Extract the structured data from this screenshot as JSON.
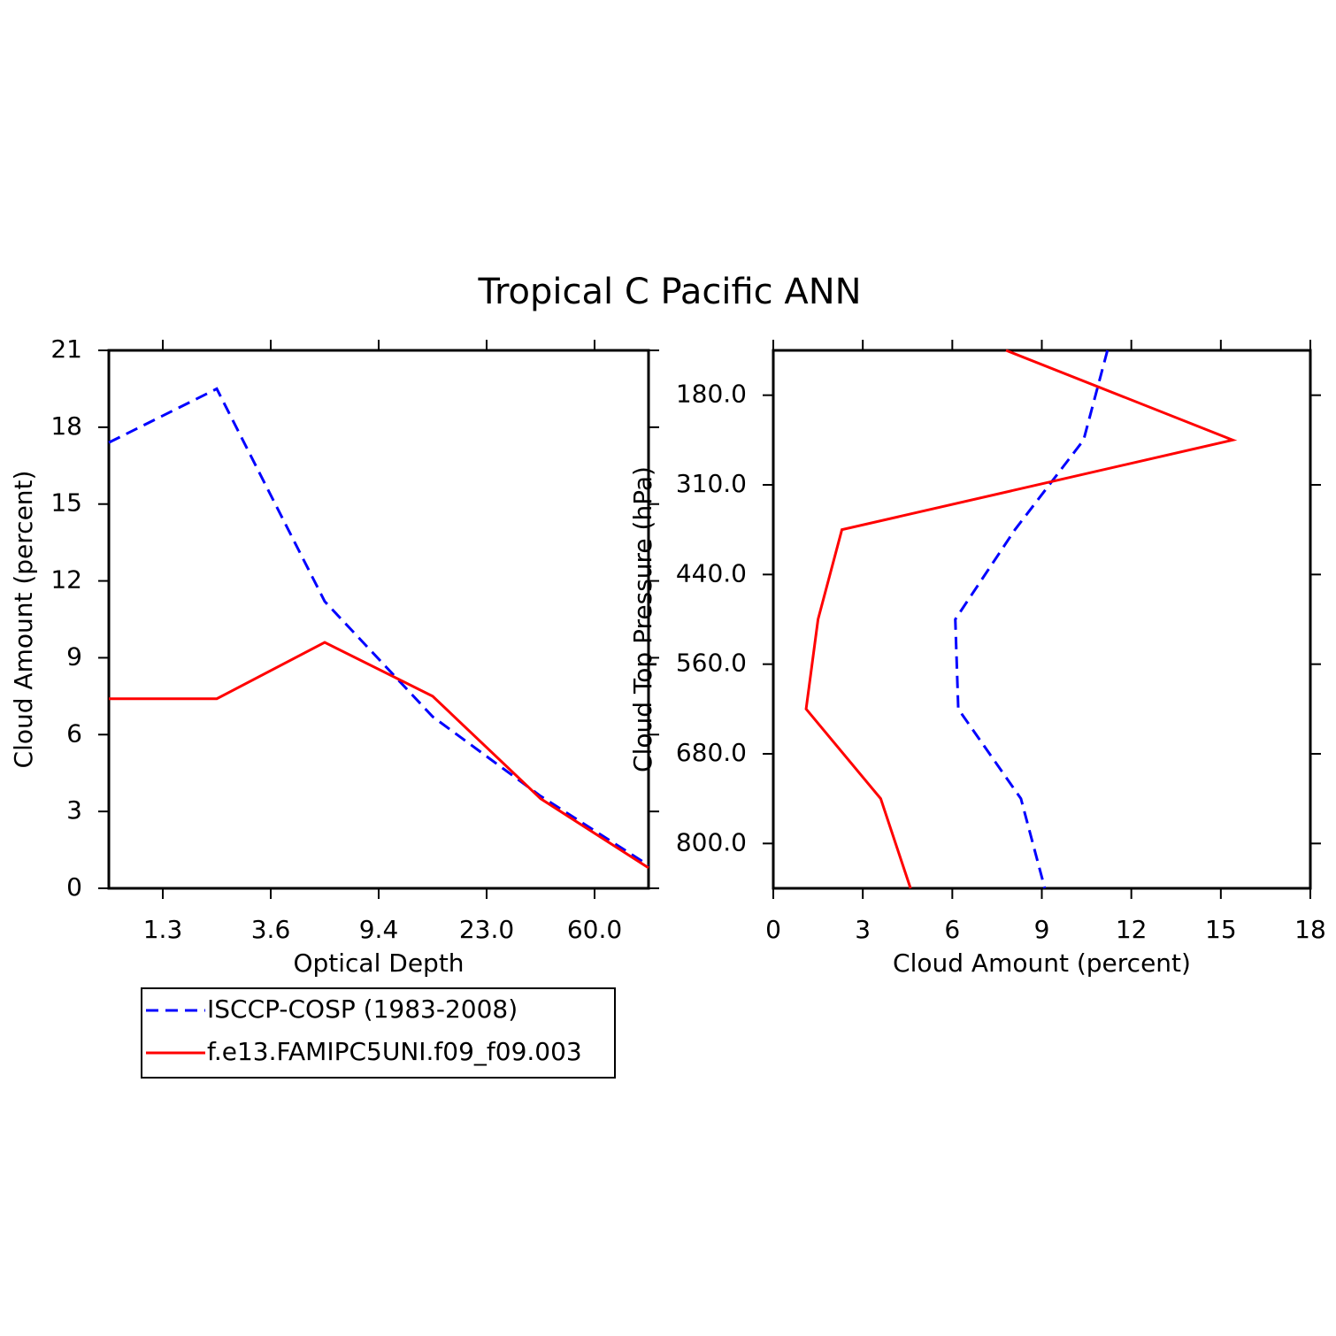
{
  "title": "Tropical C Pacific ANN",
  "chart_data": [
    {
      "type": "line",
      "x_label": "Optical Depth",
      "y_label": "Cloud Amount (percent)",
      "x": [
        0,
        1,
        2,
        3,
        4,
        5
      ],
      "xlim": [
        0,
        5
      ],
      "xticks": [
        {
          "value": 0.5,
          "label": "1.3"
        },
        {
          "value": 1.5,
          "label": "3.6"
        },
        {
          "value": 2.5,
          "label": "9.4"
        },
        {
          "value": 3.5,
          "label": "23.0"
        },
        {
          "value": 4.5,
          "label": "60.0"
        }
      ],
      "ylim": [
        0,
        21
      ],
      "yticks": [
        0,
        3,
        6,
        9,
        12,
        15,
        18,
        21
      ],
      "legend": "below",
      "series": [
        {
          "name": "ISCCP-COSP (1983-2008)",
          "color": "#0000ff",
          "dash": true,
          "values": [
            17.4,
            19.5,
            11.2,
            6.7,
            3.6,
            0.9
          ]
        },
        {
          "name": "f.e13.FAMIPC5UNI.f09_f09.003",
          "color": "#ff0000",
          "dash": false,
          "values": [
            7.4,
            7.4,
            9.6,
            7.5,
            3.5,
            0.8
          ]
        }
      ]
    },
    {
      "type": "line",
      "orientation": "horizontal",
      "x_label": "Cloud Amount (percent)",
      "y_label": "Cloud Top Pressure (hPa)",
      "y": [
        0,
        1,
        2,
        3,
        4,
        5,
        6
      ],
      "ylim": [
        0,
        6
      ],
      "y_reverse": true,
      "yticks": [
        {
          "value": 0.5,
          "label": "180.0"
        },
        {
          "value": 1.5,
          "label": "310.0"
        },
        {
          "value": 2.5,
          "label": "440.0"
        },
        {
          "value": 3.5,
          "label": "560.0"
        },
        {
          "value": 4.5,
          "label": "680.0"
        },
        {
          "value": 5.5,
          "label": "800.0"
        }
      ],
      "xlim": [
        0,
        18
      ],
      "xticks": [
        0,
        3,
        6,
        9,
        12,
        15,
        18
      ],
      "series": [
        {
          "color": "#0000ff",
          "dash": true,
          "values": [
            11.2,
            10.4,
            8.1,
            6.1,
            6.2,
            8.3,
            9.1
          ]
        },
        {
          "color": "#ff0000",
          "dash": false,
          "values": [
            7.8,
            15.4,
            2.3,
            1.5,
            1.1,
            3.6,
            4.6
          ]
        }
      ]
    }
  ]
}
